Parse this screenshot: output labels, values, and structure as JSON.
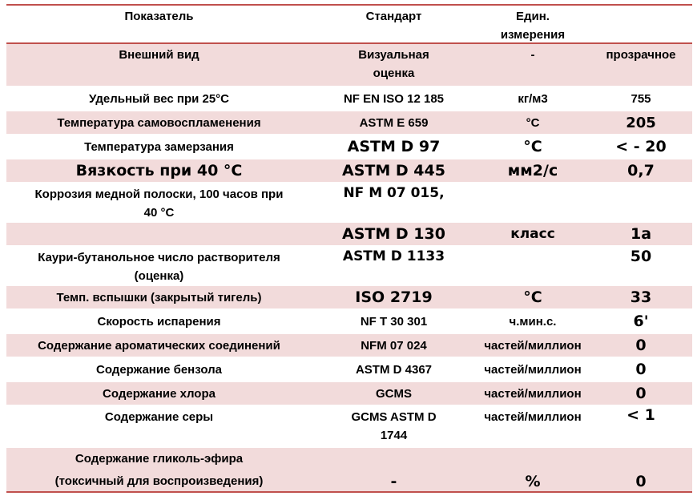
{
  "header": {
    "col1": "Показатель",
    "col2": "Стандарт",
    "col3_line1": "Един.",
    "col3_line2": "измерения",
    "col4": ""
  },
  "rows": [
    {
      "param": "Внешний вид",
      "standard_l1": "Визуальная",
      "standard_l2": "оценка",
      "unit": "-",
      "value": "прозрачное"
    },
    {
      "param": "Удельный вес при 25°C",
      "standard": "NF EN ISO 12 185",
      "unit": "кг/м3",
      "value": "755"
    },
    {
      "param": "Температура самовоспламенения",
      "standard": "ASTM E 659",
      "unit": "°C",
      "value": "205"
    },
    {
      "param": "Температура замерзания",
      "standard": "ASTM D 97",
      "unit": "°C",
      "value": "< - 20"
    },
    {
      "param": "Вязкость при 40 °C",
      "standard": "ASTM D 445",
      "unit": "мм2/с",
      "value": "0,7"
    },
    {
      "param_l1": "Коррозия медной полоски, 100 часов при",
      "param_l2": "40 °C",
      "standard": "NF M 07 015,",
      "unit": "",
      "value": ""
    },
    {
      "param": "",
      "standard": "ASTM D 130",
      "unit": "класс",
      "value": "1a"
    },
    {
      "param_l1": "Каури-бутанольное число растворителя",
      "param_l2": "(оценка)",
      "standard": "ASTM D 1133",
      "unit": "",
      "value": "50"
    },
    {
      "param": "Темп. вспышки (закрытый тигель)",
      "standard": "ISO 2719",
      "unit": "°C",
      "value": "33"
    },
    {
      "param": "Скорость испарения",
      "standard": "NF T 30 301",
      "unit": "ч.мин.с.",
      "value": "6'"
    },
    {
      "param": "Содержание ароматических соединений",
      "standard": "NFM 07 024",
      "unit": "частей/миллион",
      "value": "0"
    },
    {
      "param": "Содержание бензола",
      "standard": "ASTM D 4367",
      "unit": "частей/миллион",
      "value": "0"
    },
    {
      "param": "Содержание хлора",
      "standard": "GCMS",
      "unit": "частей/миллион",
      "value": "0"
    },
    {
      "param": "Содержание серы",
      "standard_l1": "GCMS ASTM D",
      "standard_l2": "1744",
      "unit": "частей/миллион",
      "value": "< 1"
    },
    {
      "param_l1": "Содержание гликоль-эфира",
      "param_l2": "(токсичный для воспроизведения)",
      "standard": "-",
      "unit": "%",
      "value": "0"
    }
  ]
}
